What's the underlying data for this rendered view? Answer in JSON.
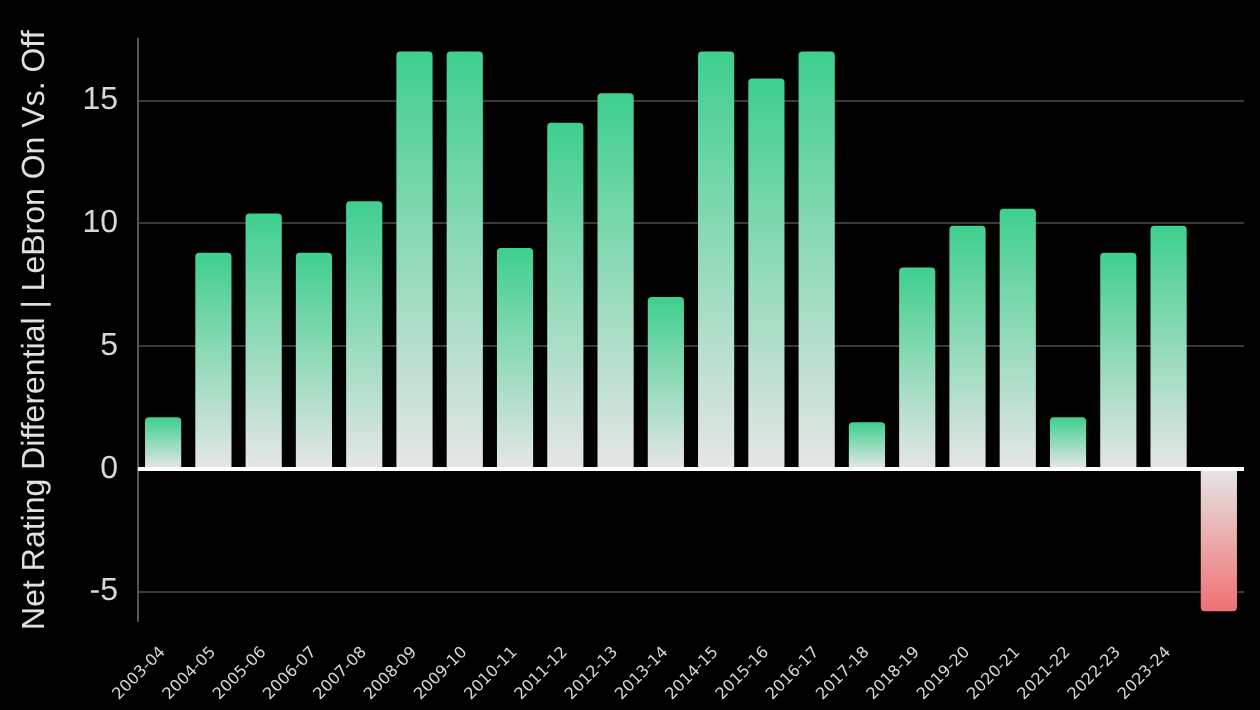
{
  "chart_data": {
    "type": "bar",
    "ylabel": "Net Rating Differential | LeBron On Vs. Off",
    "categories": [
      "2003-04",
      "2004-05",
      "2005-06",
      "2006-07",
      "2007-08",
      "2008-09",
      "2009-10",
      "2010-11",
      "2011-12",
      "2012-13",
      "2013-14",
      "2014-15",
      "2015-16",
      "2016-17",
      "2017-18",
      "2018-19",
      "2019-20",
      "2020-21",
      "2021-22",
      "2022-23",
      "2023-24",
      null
    ],
    "values": [
      2.1,
      8.8,
      10.4,
      8.8,
      10.9,
      17,
      17,
      9.0,
      14.1,
      15.3,
      7.0,
      17,
      15.9,
      17,
      1.9,
      8.2,
      9.9,
      10.6,
      2.1,
      8.8,
      9.9,
      -5.8
    ],
    "colors": [
      "#3ecf8e",
      "#3ecf8e",
      "#3ecf8e",
      "#3ecf8e",
      "#3ecf8e",
      "#3ecf8e",
      "#3ecf8e",
      "#3ecf8e",
      "#3ecf8e",
      "#3ecf8e",
      "#3ecf8e",
      "#3ecf8e",
      "#3ecf8e",
      "#3ecf8e",
      "#3ecf8e",
      "#3ecf8e",
      "#3ecf8e",
      "#3ecf8e",
      "#3ecf8e",
      "#3ecf8e",
      "#3ecf8e",
      "#f07070"
    ],
    "ylim": [
      -6.2,
      17.5
    ],
    "yticks": [
      -5,
      0,
      5,
      10,
      15
    ],
    "grid": "y"
  }
}
